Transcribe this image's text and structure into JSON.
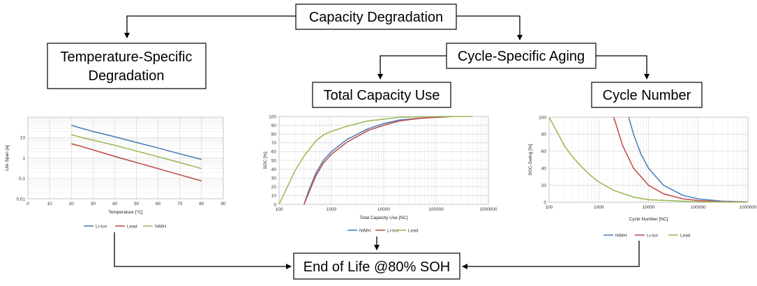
{
  "boxes": {
    "capacity_degradation": "Capacity Degradation",
    "temperature_specific_line1": "Temperature-Specific",
    "temperature_specific_line2": "Degradation",
    "cycle_specific_aging": "Cycle-Specific Aging",
    "total_capacity_use": "Total Capacity Use",
    "cycle_number": "Cycle Number",
    "end_of_life": "End of Life @80% SOH"
  },
  "colors": {
    "li_ion": "#4f81bd",
    "lead": "#c0504d",
    "nimh": "#9bbb59"
  },
  "chart_data": [
    {
      "type": "line",
      "xlabel": "Temperature [°C]",
      "ylabel": "Life Span [a]",
      "xlim": [
        0,
        90
      ],
      "ylim": [
        0.01,
        100
      ],
      "yscale": "log",
      "xticks": [
        "0",
        "10",
        "20",
        "30",
        "40",
        "50",
        "60",
        "70",
        "80",
        "90"
      ],
      "yticks": [
        "0,01",
        "0,1",
        "1",
        "10"
      ],
      "legend": "bottom",
      "series": [
        {
          "name": "Li-Ion",
          "color": "#4f81bd",
          "x": [
            20,
            25,
            30,
            40,
            50,
            60,
            70,
            80
          ],
          "y": [
            40,
            28,
            20,
            11,
            5.8,
            3.1,
            1.6,
            0.85
          ]
        },
        {
          "name": "Lead",
          "color": "#c0504d",
          "x": [
            20,
            25,
            30,
            40,
            50,
            60,
            70,
            80
          ],
          "y": [
            5,
            3.6,
            2.5,
            1.2,
            0.6,
            0.3,
            0.15,
            0.075
          ]
        },
        {
          "name": "NiMH",
          "color": "#9bbb59",
          "x": [
            20,
            25,
            30,
            40,
            50,
            60,
            70,
            80
          ],
          "y": [
            14,
            10,
            7.5,
            4.2,
            2.2,
            1.15,
            0.6,
            0.3
          ]
        }
      ]
    },
    {
      "type": "line",
      "xlabel": "Total Capacity Use [NC]",
      "ylabel": "SOC [%]",
      "xlim": [
        100,
        1000000
      ],
      "ylim": [
        0,
        100
      ],
      "xscale": "log",
      "xticks": [
        "100",
        "1000",
        "10000",
        "100000",
        "1000000"
      ],
      "yticks": [
        "0",
        "10",
        "20",
        "30",
        "40",
        "50",
        "60",
        "70",
        "80",
        "90",
        "100"
      ],
      "legend": "bottom",
      "series": [
        {
          "name": "NiMH",
          "color": "#4f81bd",
          "x": [
            300,
            350,
            500,
            700,
            1000,
            2000,
            5000,
            10000,
            20000,
            50000,
            100000,
            200000
          ],
          "y": [
            0,
            12,
            35,
            50,
            60,
            74,
            86,
            92,
            96,
            98,
            99,
            100
          ]
        },
        {
          "name": "Li-Ion",
          "color": "#c0504d",
          "x": [
            300,
            350,
            500,
            700,
            1000,
            2000,
            5000,
            10000,
            20000,
            50000,
            100000,
            200000
          ],
          "y": [
            0,
            10,
            32,
            47,
            57,
            71,
            84,
            90,
            95,
            98,
            99,
            100
          ]
        },
        {
          "name": "Lead",
          "color": "#9bbb59",
          "x": [
            100,
            150,
            200,
            300,
            500,
            700,
            1000,
            2000,
            5000,
            10000,
            20000,
            100000,
            500000
          ],
          "y": [
            0,
            22,
            38,
            55,
            72,
            79,
            83,
            89,
            95,
            97,
            99,
            100,
            100
          ]
        }
      ]
    },
    {
      "type": "line",
      "xlabel": "Cycle Number [NC]",
      "ylabel": "SOC-Swing [%]",
      "xlim": [
        100,
        1000000
      ],
      "ylim": [
        0,
        100
      ],
      "xscale": "log",
      "xticks": [
        "100",
        "1000",
        "10000",
        "100000",
        "1000000"
      ],
      "yticks": [
        "0",
        "20",
        "40",
        "60",
        "80",
        "100"
      ],
      "legend": "bottom",
      "series": [
        {
          "name": "NiMH",
          "color": "#4f81bd",
          "x": [
            4000,
            5000,
            7000,
            10000,
            20000,
            50000,
            100000,
            300000,
            1000000
          ],
          "y": [
            100,
            80,
            57,
            40,
            20,
            8,
            4,
            1.3,
            0.4
          ]
        },
        {
          "name": "Li-Ion",
          "color": "#c0504d",
          "x": [
            2000,
            3000,
            5000,
            10000,
            20000,
            50000,
            100000,
            300000,
            1000000
          ],
          "y": [
            100,
            67,
            40,
            20,
            10,
            4,
            2,
            0.7,
            0.2
          ]
        },
        {
          "name": "Lead",
          "color": "#9bbb59",
          "x": [
            100,
            150,
            200,
            300,
            500,
            700,
            1000,
            2000,
            5000,
            10000,
            100000,
            1000000
          ],
          "y": [
            100,
            81,
            67,
            53,
            39,
            31,
            24,
            14,
            6,
            3,
            0.5,
            0.1
          ]
        }
      ]
    }
  ]
}
